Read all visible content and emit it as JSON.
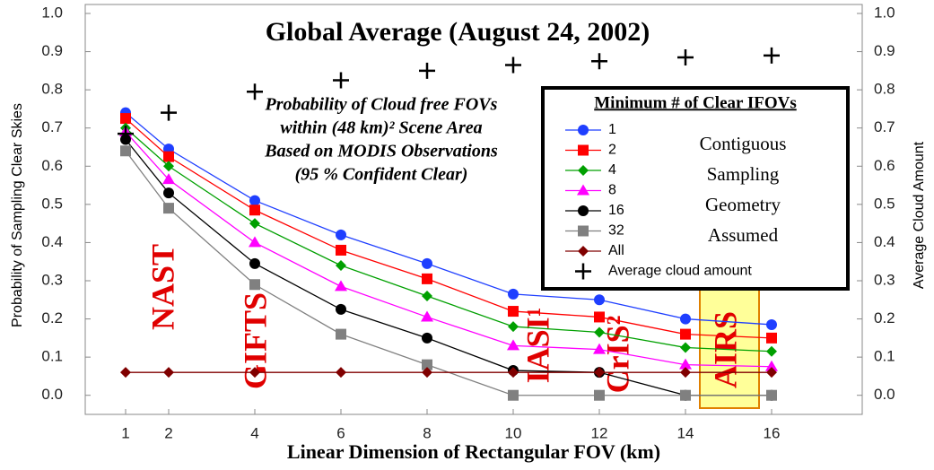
{
  "chart_data": {
    "type": "line",
    "title": "Global Average (August 24, 2002)",
    "x_label": "Linear Dimension of Rectangular FOV (km)",
    "y_label": "Probability of Sampling Clear Skies",
    "y2_label": "Average Cloud Amount",
    "annotation": [
      "Probability of Cloud free FOVs",
      "within (48 km)² Scene Area",
      "Based on MODIS Observations",
      "(95 % Confident Clear)"
    ],
    "geometry_note": [
      "Contiguous",
      "Sampling",
      "Geometry",
      "Assumed"
    ],
    "instruments": [
      "NAST",
      "GIFTS",
      "IASI¹",
      "CrIS²",
      "AIRS"
    ],
    "legend_title": "Minimum # of Clear IFOVs",
    "x": [
      1,
      2,
      4,
      6,
      8,
      10,
      12,
      14,
      16
    ],
    "xlim": [
      0,
      18
    ],
    "xticks": [
      1,
      2,
      4,
      6,
      8,
      10,
      12,
      14,
      16
    ],
    "ylim": [
      -0.05,
      1.0
    ],
    "yticks": [
      {
        "value": 0,
        "label": "0.0"
      },
      0.1,
      0.2,
      0.3,
      0.4,
      0.5,
      0.6,
      0.7,
      0.8,
      0.9,
      {
        "value": 1,
        "label": "1.0"
      }
    ],
    "y2lim": [
      -0.05,
      1.0
    ],
    "y2ticks": [
      {
        "value": 0,
        "label": "0.0"
      },
      0.1,
      0.2,
      0.3,
      0.4,
      0.5,
      0.6,
      0.7,
      0.8,
      0.9,
      {
        "value": 1,
        "label": "1.0"
      }
    ],
    "series": [
      {
        "name": "1",
        "color": "#1f3fff",
        "marker": "circle",
        "values": [
          0.74,
          0.645,
          0.51,
          0.42,
          0.345,
          0.265,
          0.25,
          0.2,
          0.185
        ]
      },
      {
        "name": "2",
        "color": "#ff0000",
        "marker": "square",
        "values": [
          0.725,
          0.625,
          0.485,
          0.38,
          0.305,
          0.22,
          0.205,
          0.16,
          0.15
        ]
      },
      {
        "name": "4",
        "color": "#00a000",
        "marker": "diamond",
        "values": [
          0.7,
          0.6,
          0.45,
          0.34,
          0.26,
          0.18,
          0.165,
          0.125,
          0.115
        ]
      },
      {
        "name": "8",
        "color": "#ff00ff",
        "marker": "triangle",
        "values": [
          0.69,
          0.565,
          0.4,
          0.285,
          0.205,
          0.13,
          0.12,
          0.08,
          0.075
        ]
      },
      {
        "name": "16",
        "color": "#000000",
        "marker": "circle",
        "values": [
          0.67,
          0.53,
          0.345,
          0.225,
          0.15,
          0.065,
          0.06,
          0.0,
          0.0
        ]
      },
      {
        "name": "32",
        "color": "#808080",
        "marker": "square",
        "values": [
          0.64,
          0.49,
          0.29,
          0.16,
          0.08,
          0.0,
          0.0,
          0.0,
          0.0
        ]
      },
      {
        "name": "All",
        "color": "#800000",
        "marker": "diamond",
        "values": [
          0.06,
          0.06,
          0.06,
          0.06,
          0.06,
          0.06,
          0.06,
          0.06,
          0.06
        ]
      },
      {
        "name": "Average cloud amount",
        "color": "#000000",
        "marker": "plus",
        "axis": "y2",
        "values": [
          0.685,
          0.74,
          0.795,
          0.825,
          0.85,
          0.865,
          0.875,
          0.885,
          0.89
        ]
      }
    ]
  }
}
